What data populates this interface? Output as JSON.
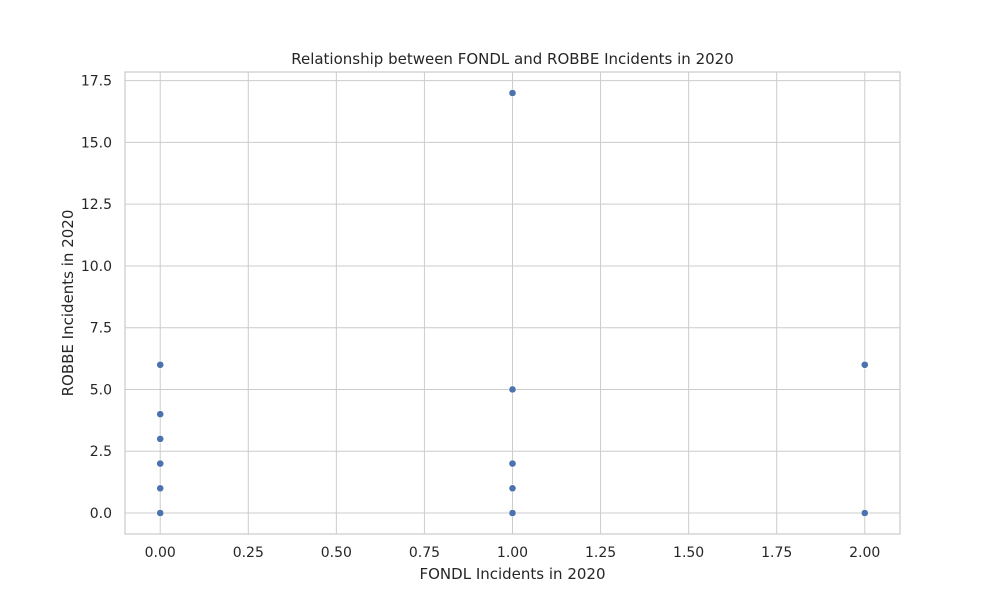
{
  "chart_data": {
    "type": "scatter",
    "title": "Relationship between FONDL and ROBBE Incidents in 2020",
    "xlabel": "FONDL Incidents in 2020",
    "ylabel": "ROBBE Incidents in 2020",
    "xlim": [
      -0.1,
      2.1
    ],
    "ylim": [
      -0.85,
      17.85
    ],
    "xticks": [
      0.0,
      0.25,
      0.5,
      0.75,
      1.0,
      1.25,
      1.5,
      1.75,
      2.0
    ],
    "xtick_labels": [
      "0.00",
      "0.25",
      "0.50",
      "0.75",
      "1.00",
      "1.25",
      "1.50",
      "1.75",
      "2.00"
    ],
    "yticks": [
      0.0,
      2.5,
      5.0,
      7.5,
      10.0,
      12.5,
      15.0,
      17.5
    ],
    "ytick_labels": [
      "0.0",
      "2.5",
      "5.0",
      "7.5",
      "10.0",
      "12.5",
      "15.0",
      "17.5"
    ],
    "grid": true,
    "point_color": "#4c72b0",
    "points": [
      {
        "x": 0,
        "y": 0
      },
      {
        "x": 0,
        "y": 1
      },
      {
        "x": 0,
        "y": 2
      },
      {
        "x": 0,
        "y": 3
      },
      {
        "x": 0,
        "y": 4
      },
      {
        "x": 0,
        "y": 6
      },
      {
        "x": 1,
        "y": 0
      },
      {
        "x": 1,
        "y": 1
      },
      {
        "x": 1,
        "y": 2
      },
      {
        "x": 1,
        "y": 5
      },
      {
        "x": 1,
        "y": 17
      },
      {
        "x": 2,
        "y": 0
      },
      {
        "x": 2,
        "y": 6
      }
    ]
  }
}
